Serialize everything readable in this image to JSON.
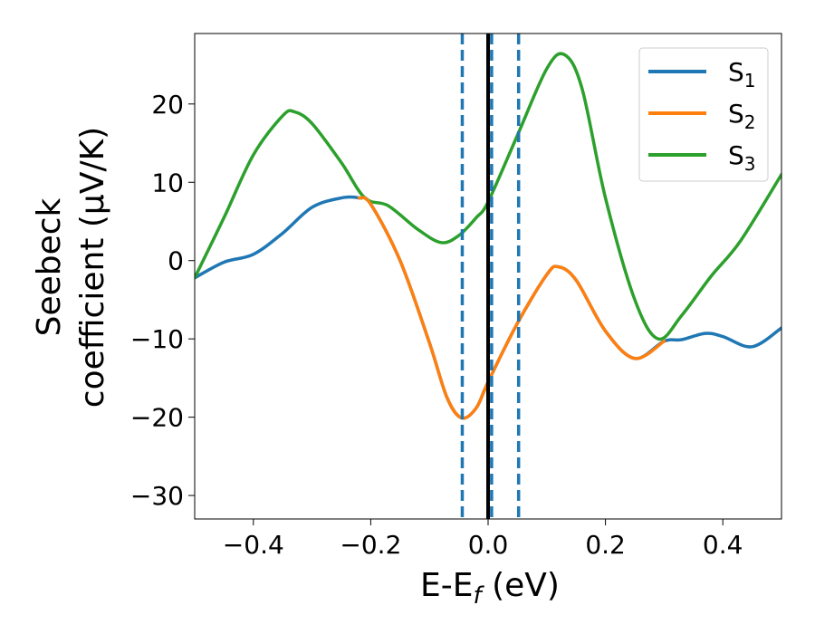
{
  "chart_data": {
    "type": "line",
    "xlabel": "E-E",
    "xlabel_sub": "f",
    "xlabel_unit": " (eV)",
    "ylabel_line1": "Seebeck",
    "ylabel_line2": "coefficient  (μV/K)",
    "xlim": [
      -0.5,
      0.5
    ],
    "ylim": [
      -33,
      29
    ],
    "x_ticks": [
      -0.4,
      -0.2,
      0.0,
      0.2,
      0.4
    ],
    "x_tick_labels": [
      "−0.4",
      "−0.2",
      "0.0",
      "0.2",
      "0.4"
    ],
    "y_ticks": [
      -30,
      -20,
      -10,
      0,
      10,
      20
    ],
    "y_tick_labels": [
      "−30",
      "−20",
      "−10",
      "0",
      "10",
      "20"
    ],
    "grid": false,
    "legend_position": "top-right",
    "vertical_lines": [
      {
        "x": 0.0,
        "style": "solid",
        "color": "#000000"
      },
      {
        "x": -0.044,
        "style": "dashed",
        "color": "#1f77b4"
      },
      {
        "x": 0.006,
        "style": "dashed",
        "color": "#1f77b4"
      },
      {
        "x": 0.052,
        "style": "dashed",
        "color": "#1f77b4"
      }
    ],
    "series": [
      {
        "name": "S",
        "name_sub": "1",
        "color": "#1f77b4",
        "x": [
          -0.5,
          -0.45,
          -0.4,
          -0.35,
          -0.3,
          -0.25,
          -0.22,
          -0.2,
          -0.15,
          -0.1,
          -0.07,
          -0.045,
          -0.02,
          0.0,
          0.05,
          0.1,
          0.12,
          0.15,
          0.2,
          0.25,
          0.3,
          0.33,
          0.37,
          0.4,
          0.45,
          0.5
        ],
        "y": [
          -2.2,
          -0.2,
          0.8,
          3.5,
          6.8,
          8.0,
          8.0,
          7.2,
          0.0,
          -10.5,
          -17.5,
          -20.1,
          -18.8,
          -15.5,
          -8.0,
          -1.8,
          -0.8,
          -2.5,
          -9.0,
          -12.5,
          -10.3,
          -10.1,
          -9.3,
          -9.7,
          -11.0,
          -8.6
        ]
      },
      {
        "name": "S",
        "name_sub": "2",
        "color": "#ff7f0e",
        "x": [
          -0.22,
          -0.2,
          -0.15,
          -0.1,
          -0.07,
          -0.045,
          -0.02,
          0.0,
          0.05,
          0.1,
          0.12,
          0.15,
          0.2,
          0.25,
          0.3
        ],
        "y": [
          8.0,
          7.2,
          0.0,
          -10.5,
          -17.5,
          -20.1,
          -18.8,
          -15.5,
          -8.0,
          -1.8,
          -0.8,
          -2.5,
          -9.0,
          -12.5,
          -10.3
        ]
      },
      {
        "name": "S",
        "name_sub": "3",
        "color": "#2ca02c",
        "x": [
          -0.5,
          -0.45,
          -0.4,
          -0.35,
          -0.33,
          -0.3,
          -0.25,
          -0.21,
          -0.17,
          -0.12,
          -0.08,
          -0.05,
          -0.02,
          0.0,
          0.05,
          0.1,
          0.13,
          0.16,
          0.2,
          0.25,
          0.29,
          0.33,
          0.38,
          0.43,
          0.5
        ],
        "y": [
          -2.2,
          5.5,
          13.5,
          18.5,
          19.0,
          17.5,
          12.5,
          8.0,
          7.0,
          4.0,
          2.3,
          3.2,
          5.5,
          7.5,
          16.0,
          24.5,
          26.3,
          22.0,
          8.0,
          -5.0,
          -10.0,
          -7.0,
          -2.0,
          2.5,
          11.0
        ]
      }
    ]
  }
}
